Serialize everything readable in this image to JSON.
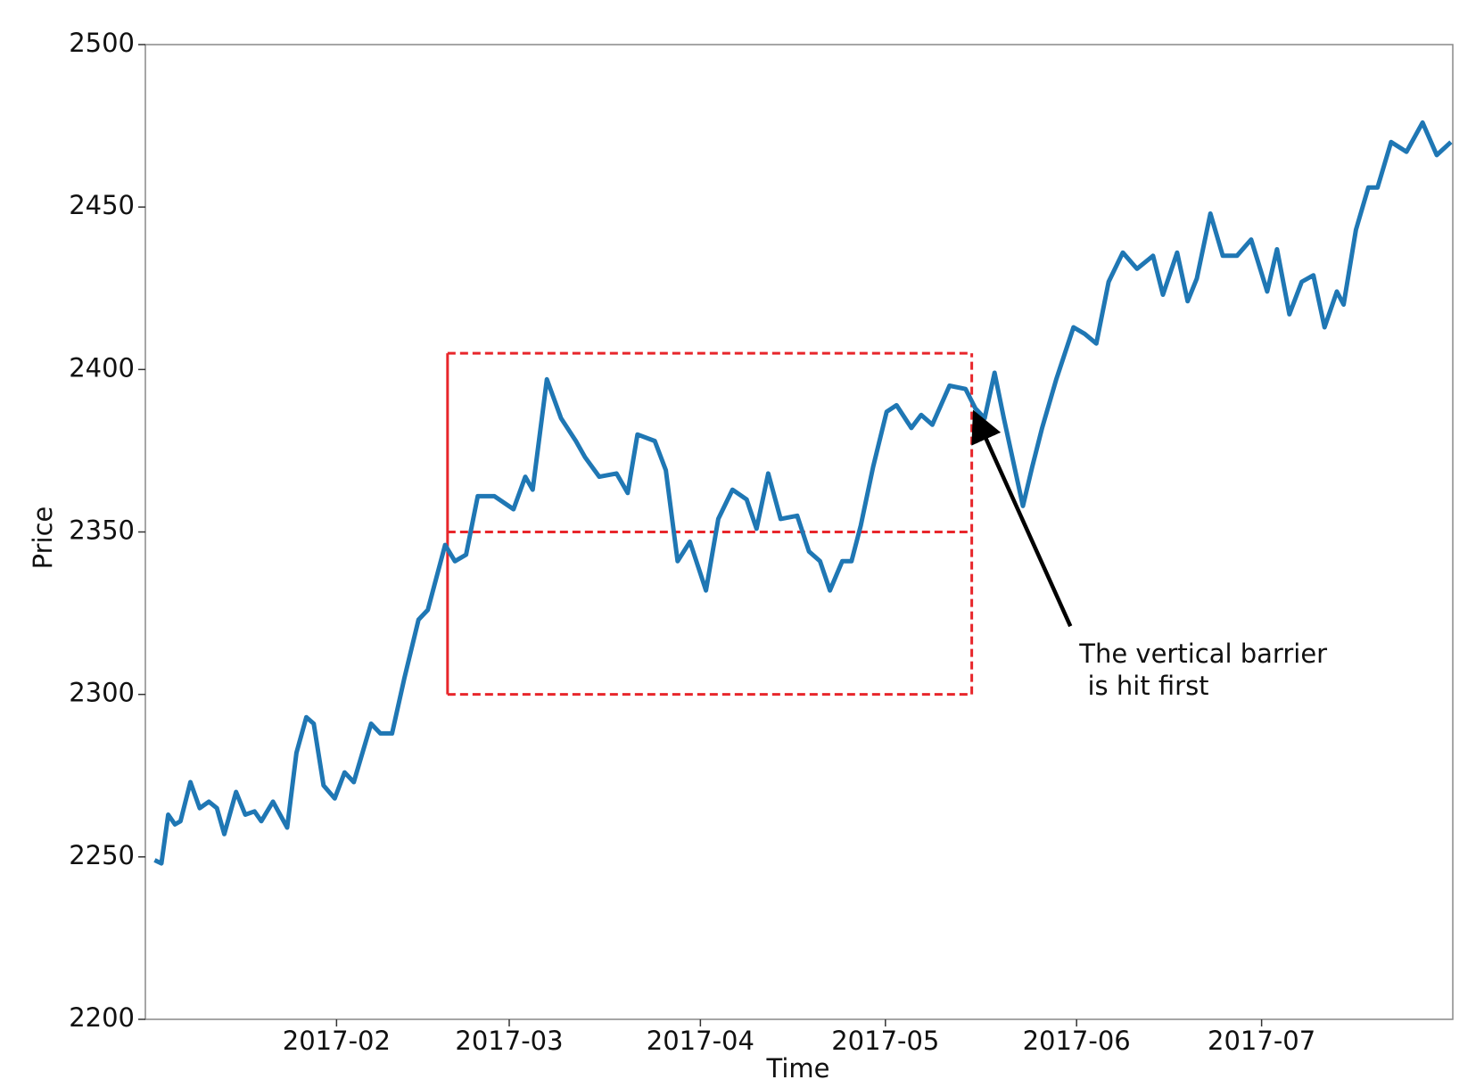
{
  "chart_data": {
    "type": "line",
    "xlabel": "Time",
    "ylabel": "Price",
    "xlim": [
      0,
      212
    ],
    "ylim": [
      2200,
      2500
    ],
    "xticks": [
      {
        "value": 31,
        "label": "2017-02"
      },
      {
        "value": 59,
        "label": "2017-03"
      },
      {
        "value": 90,
        "label": "2017-04"
      },
      {
        "value": 120,
        "label": "2017-05"
      },
      {
        "value": 151,
        "label": "2017-06"
      },
      {
        "value": 181,
        "label": "2017-07"
      }
    ],
    "yticks": [
      2200,
      2250,
      2300,
      2350,
      2400,
      2450,
      2500
    ],
    "x": [
      1.5,
      2.6,
      3.7,
      4.8,
      5.7,
      7.3,
      8.8,
      10.3,
      11.6,
      12.8,
      14.7,
      16.2,
      17.7,
      18.8,
      20.7,
      23,
      24.5,
      26.1,
      27.3,
      28.9,
      30.7,
      32.3,
      33.8,
      36.6,
      38.1,
      40,
      42,
      44.3,
      45.8,
      48.6,
      50.2,
      52,
      53.9,
      56.6,
      59.7,
      61.6,
      62.8,
      65.1,
      67.4,
      69.8,
      71.3,
      73.6,
      76.4,
      78.2,
      79.8,
      82.6,
      84.4,
      86.3,
      88.3,
      90.9,
      92.9,
      95.2,
      97.5,
      99.1,
      101,
      103,
      105.7,
      107.6,
      109.4,
      111,
      113,
      114.5,
      116,
      118,
      120.2,
      121.8,
      124.2,
      125.8,
      127.6,
      130.4,
      133,
      134.6,
      136.1,
      137.7,
      139.2,
      142.3,
      143.8,
      145.4,
      147.7,
      150.5,
      152.3,
      154.2,
      156.2,
      158.5,
      160.8,
      163.4,
      165,
      167.3,
      169,
      170.5,
      172.7,
      174.7,
      177,
      179.3,
      181.9,
      183.5,
      185.5,
      187.5,
      189.4,
      191.2,
      193.2,
      194.3,
      196.3,
      198.3,
      199.8,
      202,
      204.5,
      207.1,
      209.4,
      211.7
    ],
    "series": [
      {
        "color": "#1f77b4",
        "values": [
          2249,
          2248,
          2263,
          2260,
          2261,
          2273,
          2265,
          2267,
          2265,
          2257,
          2270,
          2263,
          2264,
          2261,
          2267,
          2259,
          2282,
          2293,
          2291,
          2272,
          2268,
          2276,
          2273,
          2291,
          2288,
          2288,
          2305,
          2323,
          2326,
          2346,
          2341,
          2343,
          2361,
          2361,
          2357,
          2367,
          2363,
          2397,
          2385,
          2378,
          2373,
          2367,
          2368,
          2362,
          2380,
          2378,
          2369,
          2341,
          2347,
          2332,
          2354,
          2363,
          2360,
          2351,
          2368,
          2354,
          2355,
          2344,
          2341,
          2332,
          2341,
          2341,
          2352,
          2370,
          2387,
          2389,
          2382,
          2386,
          2383,
          2395,
          2394,
          2388,
          2385,
          2399,
          2385,
          2358,
          2370,
          2382,
          2397,
          2413,
          2411,
          2408,
          2427,
          2436,
          2431,
          2435,
          2423,
          2436,
          2421,
          2428,
          2448,
          2435,
          2435,
          2440,
          2424,
          2437,
          2417,
          2427,
          2429,
          2413,
          2424,
          2420,
          2443,
          2456,
          2456,
          2470,
          2467,
          2476,
          2466,
          2470
        ]
      }
    ],
    "barriers": {
      "color": "#e8262b",
      "start": 49,
      "end": 134,
      "upper": 2405,
      "entry": 2350,
      "lower": 2300
    },
    "annotation": {
      "text": [
        "The vertical barrier",
        " is hit first"
      ],
      "x": 134.3,
      "y": 2387,
      "text_x": 150,
      "text_y": 2321
    }
  }
}
